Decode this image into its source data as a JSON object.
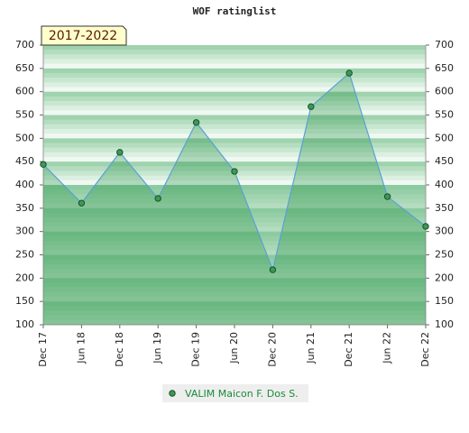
{
  "chart_data": {
    "type": "area",
    "title": "WOF ratinglist",
    "annotation": "2017-2022",
    "categories": [
      "Dec 17",
      "Jun 18",
      "Dec 18",
      "Jun 19",
      "Dec 19",
      "Jun 20",
      "Dec 20",
      "Jun 21",
      "Dec 21",
      "Jun 22",
      "Dec 22"
    ],
    "series": [
      {
        "name": "VALIM Maicon F. Dos S.",
        "color": "#1a8a3a",
        "values": [
          444,
          361,
          470,
          371,
          534,
          429,
          218,
          568,
          640,
          375,
          311
        ]
      }
    ],
    "ylim": [
      100,
      700
    ],
    "yticks": [
      100,
      150,
      200,
      250,
      300,
      350,
      400,
      450,
      500,
      550,
      600,
      650,
      700
    ],
    "right_axis": true
  }
}
